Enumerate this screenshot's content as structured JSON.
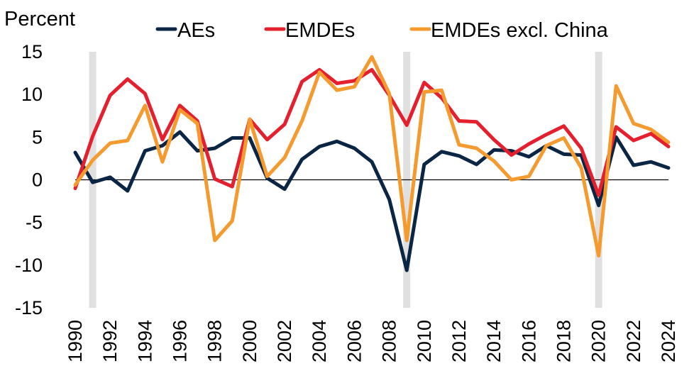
{
  "chart_data": {
    "type": "line",
    "ylabel": "Percent",
    "ylim": [
      -15,
      15
    ],
    "yticks": [
      15,
      10,
      5,
      0,
      -5,
      -10,
      -15
    ],
    "ytick_labels": [
      "15",
      "10",
      "5",
      "0",
      "-5",
      "-10",
      "-15"
    ],
    "x": [
      1990,
      1991,
      1992,
      1993,
      1994,
      1995,
      1996,
      1997,
      1998,
      1999,
      2000,
      2001,
      2002,
      2003,
      2004,
      2005,
      2006,
      2007,
      2008,
      2009,
      2010,
      2011,
      2012,
      2013,
      2014,
      2015,
      2016,
      2017,
      2018,
      2019,
      2020,
      2021,
      2022,
      2023,
      2024
    ],
    "xtick_labels": [
      "1990",
      "1992",
      "1994",
      "1996",
      "1998",
      "2000",
      "2002",
      "2004",
      "2006",
      "2008",
      "2010",
      "2012",
      "2014",
      "2016",
      "2018",
      "2020",
      "2022",
      "2024"
    ],
    "shaded_years": [
      1991,
      2009,
      2020
    ],
    "legend_position": "top",
    "series": [
      {
        "name": "AEs",
        "color": "#0b2545",
        "values": [
          3.2,
          -0.3,
          0.3,
          -1.3,
          3.4,
          4.0,
          5.6,
          3.4,
          3.7,
          4.9,
          4.9,
          0.2,
          -1.1,
          2.4,
          3.9,
          4.5,
          3.7,
          2.1,
          -2.3,
          -10.6,
          1.8,
          3.3,
          2.8,
          1.8,
          3.5,
          3.4,
          2.7,
          4.0,
          3.0,
          2.9,
          -3.0,
          5.0,
          1.7,
          2.1,
          1.4
        ]
      },
      {
        "name": "EMDEs",
        "color": "#e5202e",
        "values": [
          -1.0,
          5.1,
          9.9,
          11.8,
          10.1,
          4.7,
          8.7,
          6.9,
          0.1,
          -0.8,
          7.1,
          4.7,
          6.5,
          11.5,
          12.9,
          11.3,
          11.6,
          12.9,
          9.9,
          6.4,
          11.4,
          9.6,
          6.9,
          6.8,
          4.7,
          2.9,
          4.2,
          5.3,
          6.3,
          3.7,
          -1.8,
          6.2,
          4.6,
          5.4,
          3.9
        ]
      },
      {
        "name": "EMDEs excl. China",
        "color": "#f59a2e",
        "values": [
          -0.6,
          2.3,
          4.3,
          4.6,
          8.7,
          2.1,
          8.2,
          6.6,
          -7.1,
          -4.8,
          7.1,
          0.4,
          2.6,
          6.9,
          12.6,
          10.5,
          10.9,
          14.4,
          10.1,
          -7.1,
          10.3,
          10.5,
          4.1,
          3.7,
          2.2,
          0.0,
          0.4,
          4.0,
          4.9,
          1.4,
          -8.9,
          11.0,
          6.6,
          5.9,
          4.4
        ]
      }
    ]
  }
}
